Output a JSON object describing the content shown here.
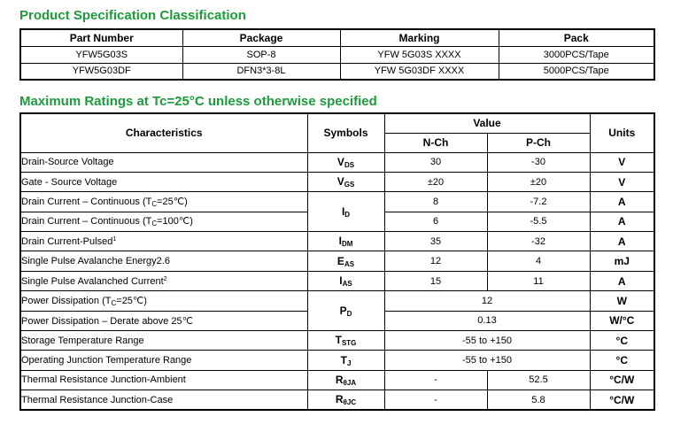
{
  "section1": {
    "title": "Product Specification Classification",
    "table": {
      "header": [
        "Part Number",
        "Package",
        "Marking",
        "Pack"
      ],
      "rows": [
        [
          "YFW5G03S",
          "SOP-8",
          "YFW 5G03S XXXX",
          "3000PCS/Tape"
        ],
        [
          "YFW5G03DF",
          "DFN3*3-8L",
          "YFW 5G03DF XXXX",
          "5000PCS/Tape"
        ]
      ]
    }
  },
  "section2": {
    "title": "Maximum Ratings at Tc=25°C unless otherwise specified",
    "table": {
      "header": {
        "characteristics": "Characteristics",
        "symbols": "Symbols",
        "value": "Value",
        "nch": "N-Ch",
        "pch": "P-Ch",
        "units": "Units"
      },
      "rows": [
        {
          "char": [
            {
              "t": "Drain-Source Voltage"
            }
          ],
          "symbol": {
            "main": "V",
            "sub": "DS"
          },
          "values": [
            "30",
            "-30"
          ],
          "units": "V"
        },
        {
          "char": [
            {
              "t": "Gate - Source Voltage"
            }
          ],
          "symbol": {
            "main": "V",
            "sub": "GS"
          },
          "values": [
            "±20",
            "±20"
          ],
          "units": "V"
        },
        {
          "char": [
            {
              "t": "Drain Current – Continuous (T"
            },
            {
              "sub": "C"
            },
            {
              "t": "=25℃)"
            }
          ],
          "symbol": {
            "main": "I",
            "sub": "D"
          },
          "values": [
            "8",
            "-7.2"
          ],
          "units": "A"
        },
        {
          "char": [
            {
              "t": "Drain Current – Continuous (T"
            },
            {
              "sub": "C"
            },
            {
              "t": "=100℃)"
            }
          ],
          "symbol": null,
          "values": [
            "6",
            "-5.5"
          ],
          "units": "A"
        },
        {
          "char": [
            {
              "t": "Drain Current-Pulsed"
            },
            {
              "sup": "1"
            }
          ],
          "symbol": {
            "main": "I",
            "sub": "DM"
          },
          "values": [
            "35",
            "-32"
          ],
          "units": "A"
        },
        {
          "char": [
            {
              "t": "Single Pulse Avalanche Energy2.6"
            }
          ],
          "symbol": {
            "main": "E",
            "sub": "AS"
          },
          "values": [
            "12",
            "4"
          ],
          "units": "mJ"
        },
        {
          "char": [
            {
              "t": "Single Pulse Avalanched Current"
            },
            {
              "sup": "2"
            }
          ],
          "symbol": {
            "main": "I",
            "sub": "AS"
          },
          "values": [
            "15",
            "11"
          ],
          "units": "A"
        },
        {
          "char": [
            {
              "t": "Power Dissipation (T"
            },
            {
              "sub": "C"
            },
            {
              "t": "=25℃)"
            }
          ],
          "symbol": {
            "main": "P",
            "sub": "D"
          },
          "values": [
            "12"
          ],
          "units": "W"
        },
        {
          "char": [
            {
              "t": "Power Dissipation – Derate above 25℃"
            }
          ],
          "symbol": null,
          "values": [
            "0.13"
          ],
          "units": "W/°C"
        },
        {
          "char": [
            {
              "t": "Storage Temperature Range"
            }
          ],
          "symbol": {
            "main": "T",
            "sub": "STG"
          },
          "values": [
            "-55 to +150"
          ],
          "units": "°C"
        },
        {
          "char": [
            {
              "t": "Operating Junction Temperature Range"
            }
          ],
          "symbol": {
            "main": "T",
            "sub": "J"
          },
          "values": [
            "-55 to +150"
          ],
          "units": "°C"
        },
        {
          "char": [
            {
              "t": "Thermal Resistance Junction-Ambient"
            }
          ],
          "symbol": {
            "main": "R",
            "sub": "θJA"
          },
          "values": [
            "-",
            "52.5"
          ],
          "units": "°C/W"
        },
        {
          "char": [
            {
              "t": "Thermal Resistance Junction-Case"
            }
          ],
          "symbol": {
            "main": "R",
            "sub": "θJC"
          },
          "values": [
            "-",
            "5.8"
          ],
          "units": "°C/W"
        }
      ]
    }
  }
}
